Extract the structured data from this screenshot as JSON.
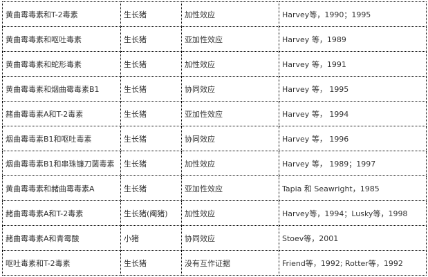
{
  "rows": [
    [
      "黄曲霉毒素和T-2毒素",
      "生长猪",
      "加性效应",
      "Harvey等，1990；1995"
    ],
    [
      "黄曲霉毒素和呕吐毒素",
      "生长猪",
      "亚加性效应",
      "Harvey 等，1989"
    ],
    [
      "黄曲霉毒素和蛇形毒素",
      "生长猪",
      "加性效应",
      "Harvey 等，1991"
    ],
    [
      "黄曲霉毒素和烟曲霉毒素B1",
      "生长猪",
      "协同效应",
      "Harvey 等， 1995"
    ],
    [
      "赭曲霉毒素A和T-2毒素",
      "生长猪",
      "亚加性效应",
      "Harvey 等， 1994"
    ],
    [
      "烟曲霉毒素B1和呕吐毒素",
      "生长猪",
      "协同效应",
      "Harvey 等， 1996"
    ],
    [
      "烟曲霉毒素B1和串珠镰刀菌毒素",
      "生长猪",
      "加性效应",
      "Harvey 等， 1989；1997"
    ],
    [
      "黄曲霉毒素和赭曲霉毒素A",
      "生长猪",
      "亚加性效应",
      "Tapia 和 Seawright，1985"
    ],
    [
      "赭曲霉毒素A和T-2毒素",
      "生长猪(阉猪)",
      "加性效应",
      "Harvey等，1994；Lusky等，1998"
    ],
    [
      "赭曲霉毒素A和青霉酸",
      "小猪",
      "协同效应",
      "Stoev等，2001"
    ],
    [
      "呕吐毒素和T-2毒素",
      "生长猪",
      "没有互作证据",
      "Friend等，1992; Rotter等，1992"
    ]
  ]
}
